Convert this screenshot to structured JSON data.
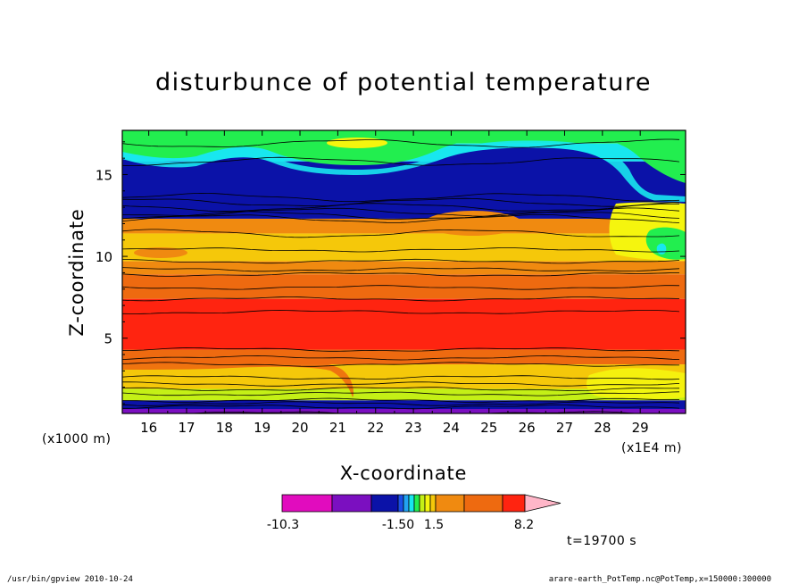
{
  "chart_data": {
    "type": "heatmap",
    "title": "disturbunce of potential temperature",
    "xlabel": "X-coordinate",
    "ylabel": "Z-coordinate",
    "x_unit_left": "(x1000 m)",
    "x_unit_right": "(x1E4 m)",
    "x_ticks": [
      "16",
      "17",
      "18",
      "19",
      "20",
      "21",
      "22",
      "23",
      "24",
      "25",
      "26",
      "27",
      "28",
      "29"
    ],
    "y_ticks": [
      "5",
      "10",
      "15"
    ],
    "xlim": [
      15.3,
      30.2
    ],
    "ylim": [
      0.4,
      17.7
    ],
    "colorbar": {
      "labels": [
        "-10.3",
        "-1.50",
        "1.5",
        "8.2"
      ],
      "colors": [
        "#e10cbe",
        "#7b0fc0",
        "#0b12a8",
        "#1a4fe6",
        "#22a3f2",
        "#18e7ee",
        "#22ee4f",
        "#c4f016",
        "#f5f50e",
        "#f5c80a",
        "#f08a10",
        "#ee6a10",
        "#ff2410",
        "#fa7a78",
        "#ffb6c8"
      ]
    },
    "layers": [
      {
        "z_top": 17.7,
        "z_bottom": 16.9,
        "color": "#22ee4f"
      },
      {
        "z_top": 16.9,
        "z_bottom": 15.8,
        "color": "#18e7ee"
      },
      {
        "z_top": 15.8,
        "z_bottom": 12.3,
        "color": "#0b12a8"
      },
      {
        "z_top": 12.3,
        "z_bottom": 11.4,
        "color": "#f08a10"
      },
      {
        "z_top": 11.4,
        "z_bottom": 9.7,
        "color": "#f5c80a"
      },
      {
        "z_top": 9.7,
        "z_bottom": 8.9,
        "color": "#f08a10"
      },
      {
        "z_top": 8.9,
        "z_bottom": 7.4,
        "color": "#ee6a10"
      },
      {
        "z_top": 7.4,
        "z_bottom": 4.3,
        "color": "#ff2410"
      },
      {
        "z_top": 4.3,
        "z_bottom": 3.4,
        "color": "#ee6a10"
      },
      {
        "z_top": 3.4,
        "z_bottom": 1.9,
        "color": "#f5c80a"
      },
      {
        "z_top": 1.9,
        "z_bottom": 1.2,
        "color": "#c4f016"
      },
      {
        "z_top": 1.2,
        "z_bottom": 0.4,
        "color": "#0b12a8"
      }
    ]
  },
  "footer": {
    "left": "/usr/bin/gpview  2010-10-24",
    "right": "arare-earth_PotTemp.nc@PotTemp,x=150000:300000",
    "time": "t=19700 s"
  }
}
